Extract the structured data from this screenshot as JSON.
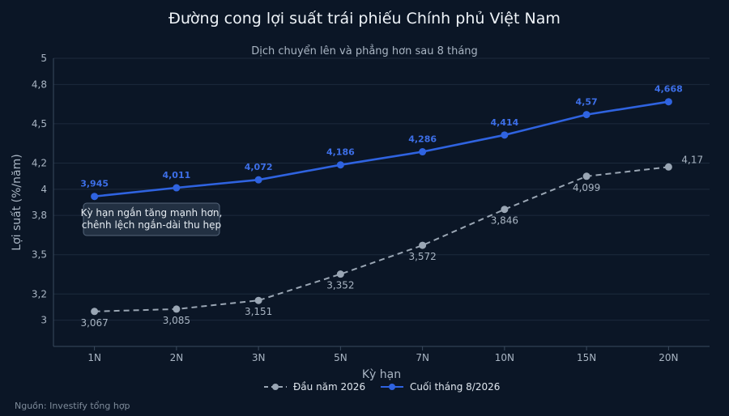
{
  "chart_data": {
    "type": "line",
    "title": "Đường cong lợi suất trái phiếu Chính phủ Việt Nam",
    "subtitle": "Dịch chuyển lên và phẳng hơn sau 8 tháng",
    "xlabel": "Kỳ hạn",
    "ylabel": "Lợi suất (%/năm)",
    "categories": [
      "1N",
      "2N",
      "3N",
      "5N",
      "7N",
      "10N",
      "15N",
      "20N"
    ],
    "ylim": [
      2.8,
      5.0
    ],
    "yticks": [
      3,
      3.2,
      3.5,
      3.8,
      4,
      4.2,
      4.5,
      4.8,
      5
    ],
    "ytick_labels": [
      "3",
      "3,2",
      "3,5",
      "3,8",
      "4",
      "4,2",
      "4,5",
      "4,8",
      "5"
    ],
    "grid": true,
    "legend_position": "bottom",
    "series": [
      {
        "name": "Đầu năm 2026",
        "style": "dashed",
        "color": "#9aa6b4",
        "values": [
          3.067,
          3.085,
          3.151,
          3.352,
          3.572,
          3.846,
          4.099,
          4.17
        ],
        "labels": [
          "3,067",
          "3,085",
          "3,151",
          "3,352",
          "3,572",
          "3,846",
          "4,099",
          "4,17"
        ]
      },
      {
        "name": "Cuối tháng 8/2026",
        "style": "solid",
        "color": "#2f63e0",
        "label_color": "#3d6fe8",
        "values": [
          3.945,
          4.011,
          4.072,
          4.186,
          4.286,
          4.414,
          4.57,
          4.668
        ],
        "labels": [
          "3,945",
          "4,011",
          "4,072",
          "4,186",
          "4,286",
          "4,414",
          "4,57",
          "4,668"
        ]
      }
    ],
    "annotation": {
      "text_lines": [
        "Kỳ hạn ngắn tăng mạnh hơn,",
        "chênh lệch ngắn-dài thu hẹp"
      ],
      "category": "1N"
    }
  },
  "source": "Nguồn: Investify tổng hợp",
  "colors": {
    "background": "#0b1626",
    "grid": "#1c2a3c",
    "axis": "#3a4a5e",
    "tick_text": "#a9b5c3"
  }
}
